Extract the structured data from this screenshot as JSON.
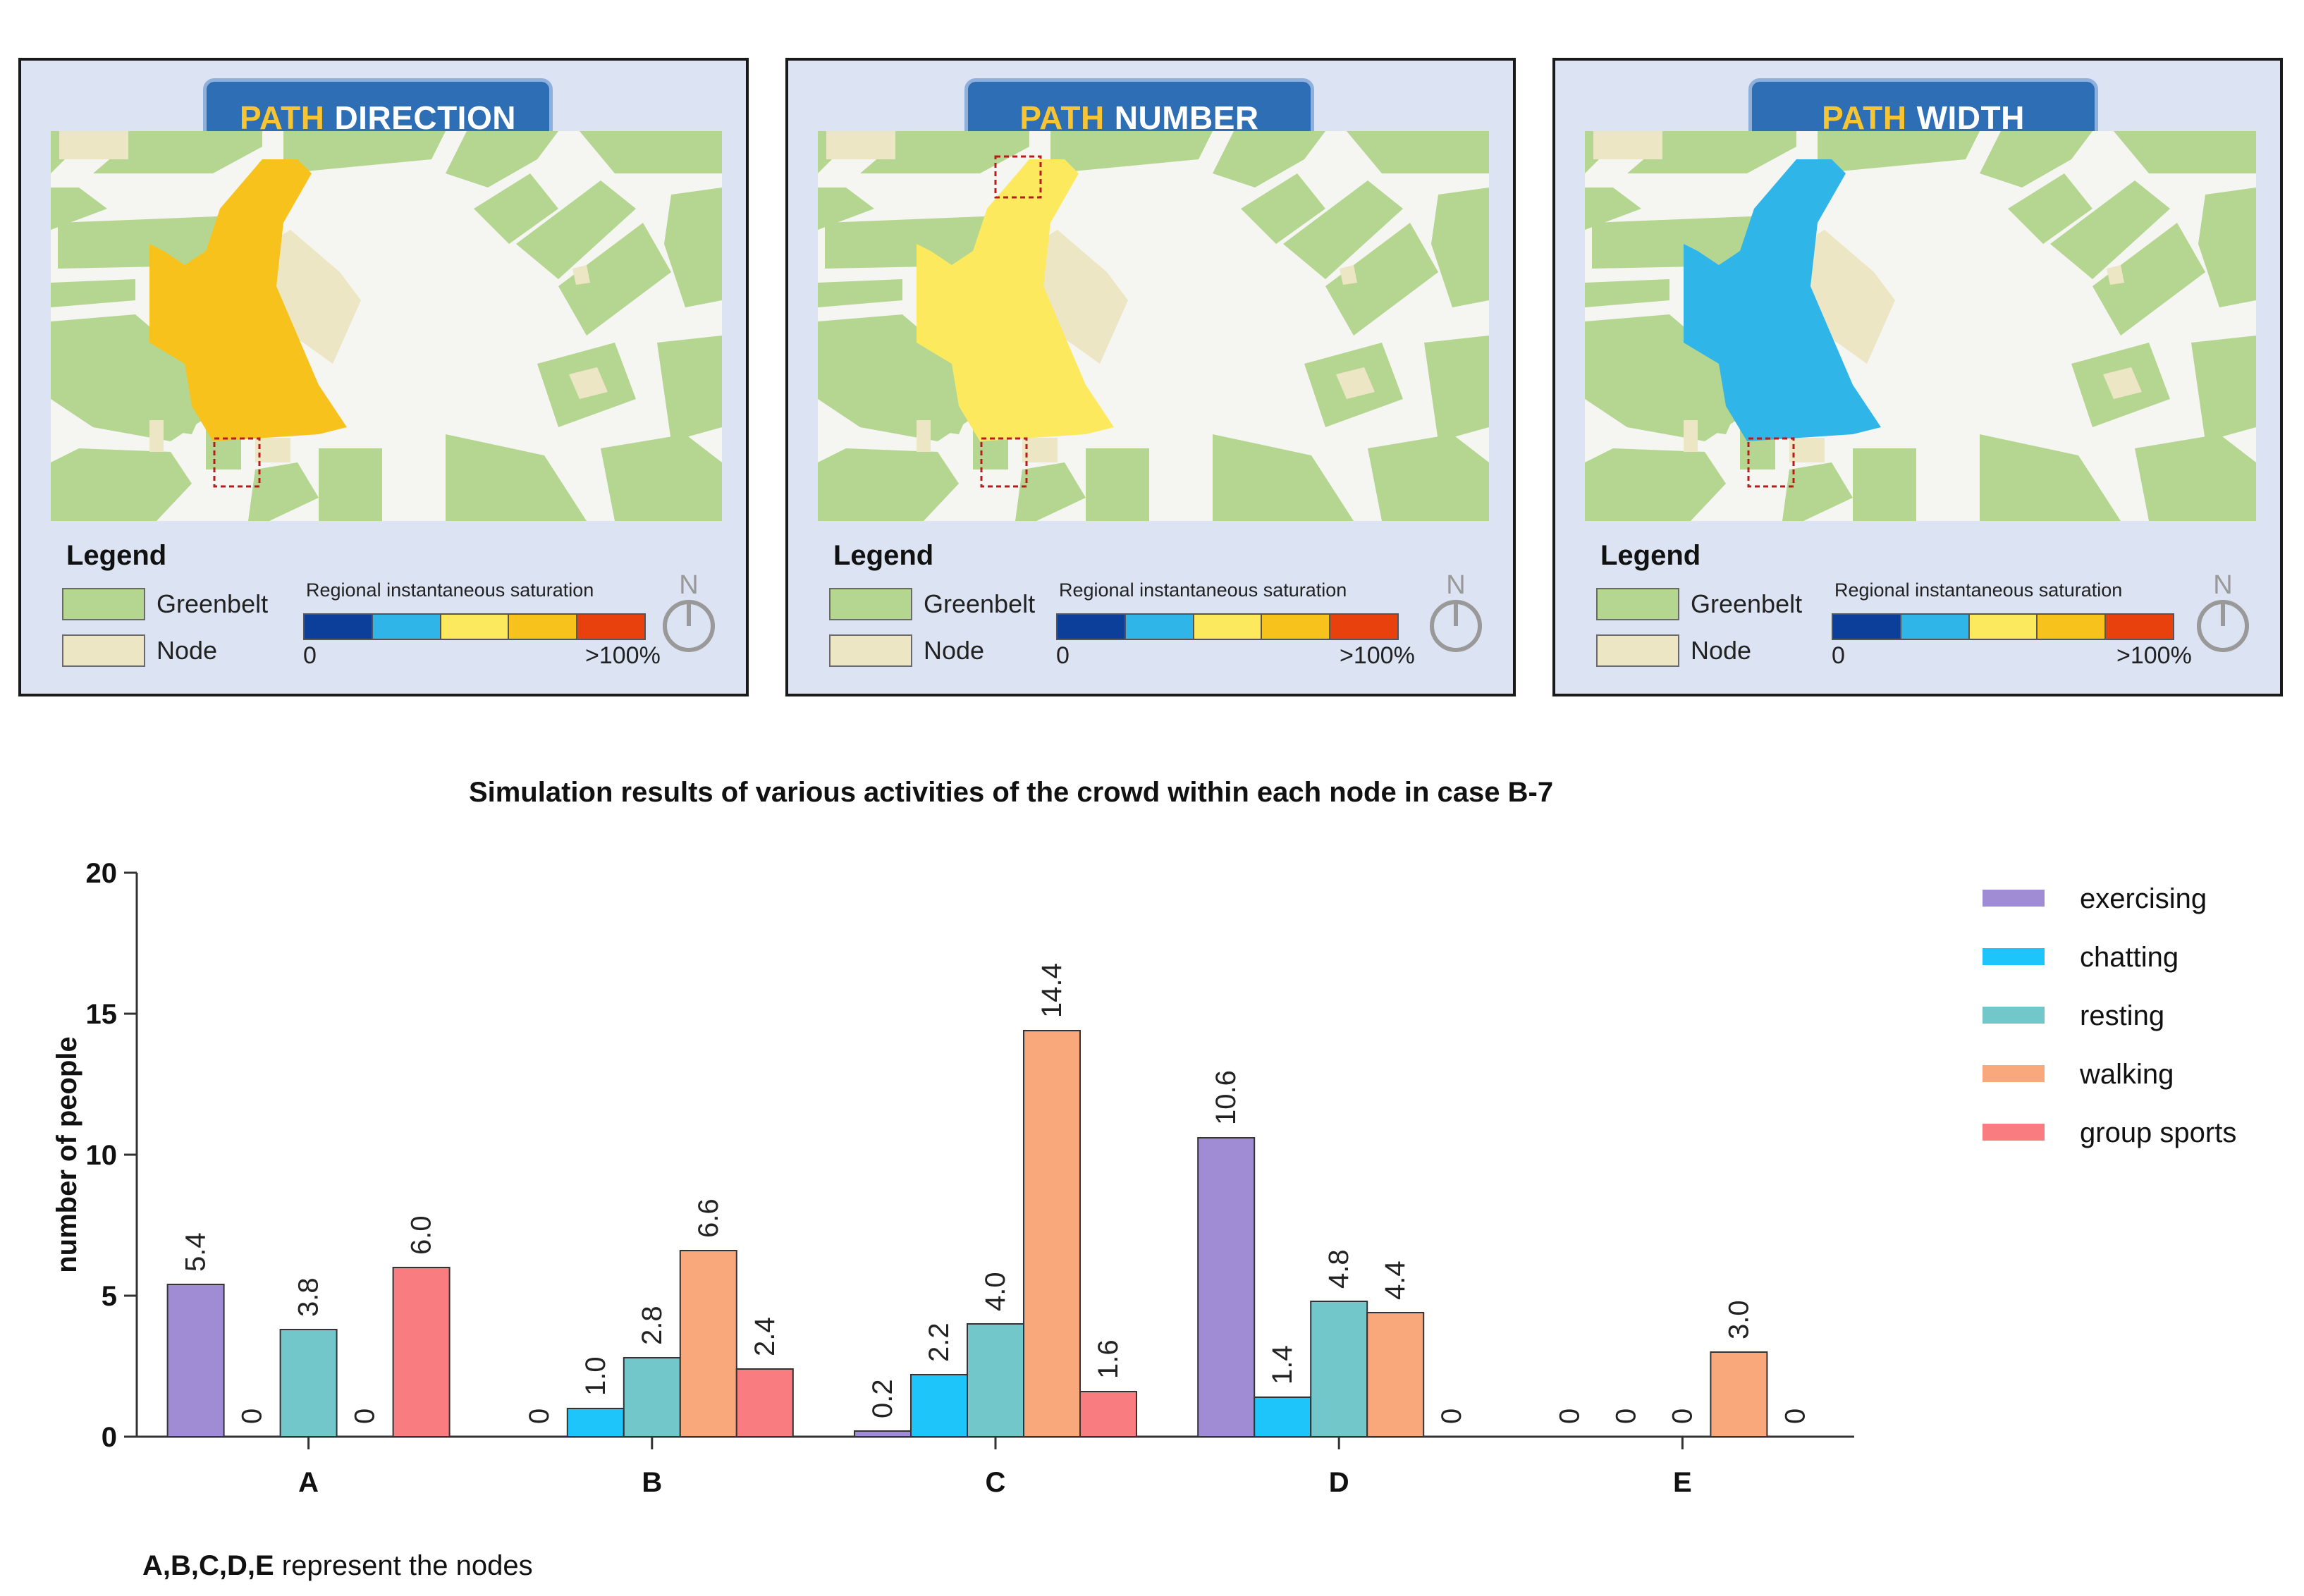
{
  "panels": [
    {
      "title_highlight": "PATH",
      "title_rest": "DIRECTION",
      "region_color": "#f7c21c",
      "box_positions": "south"
    },
    {
      "title_highlight": "PATH",
      "title_rest": "NUMBER",
      "region_color": "#fce95e",
      "box_positions": "north-south"
    },
    {
      "title_highlight": "PATH",
      "title_rest": "WIDTH",
      "region_color": "#2fb5e8",
      "box_positions": "south"
    }
  ],
  "legend": {
    "title": "Legend",
    "greenbelt": "Greenbelt",
    "node": "Node",
    "saturation_label": "Regional instantaneous saturation",
    "min": "0",
    "max": ">100%",
    "north": "N",
    "scale_colors": [
      "#0b3f99",
      "#2fb5e8",
      "#fce95e",
      "#f7c21c",
      "#e8410e"
    ],
    "greenbelt_color": "#b5d690",
    "node_color": "#ece6c4"
  },
  "chart_data": {
    "type": "bar",
    "title": "Simulation results of various activities of the crowd within each node in case B-7",
    "xlabel": "",
    "ylabel": "number of people",
    "ylim": [
      0,
      20
    ],
    "yticks": [
      0,
      5,
      10,
      15,
      20
    ],
    "categories": [
      "A",
      "B",
      "C",
      "D",
      "E"
    ],
    "series": [
      {
        "name": "exercising",
        "color": "#a08cd4",
        "values": [
          5.4,
          0,
          0.2,
          10.6,
          0
        ],
        "labels": [
          "5.4",
          "0",
          "0.2",
          "10.6",
          "0"
        ]
      },
      {
        "name": "chatting",
        "color": "#1ec5fa",
        "values": [
          0,
          1.0,
          2.2,
          1.4,
          0
        ],
        "labels": [
          "0",
          "1.0",
          "2.2",
          "1.4",
          "0"
        ]
      },
      {
        "name": "resting",
        "color": "#72c7cb",
        "values": [
          3.8,
          2.8,
          4.0,
          4.8,
          0
        ],
        "labels": [
          "3.8",
          "2.8",
          "4.0",
          "4.8",
          "0"
        ]
      },
      {
        "name": "walking",
        "color": "#f8a87a",
        "values": [
          0,
          6.6,
          14.4,
          4.4,
          3.0
        ],
        "labels": [
          "0",
          "6.6",
          "14.4",
          "4.4",
          "3.0"
        ]
      },
      {
        "name": "group sports",
        "color": "#f87c80",
        "values": [
          6.0,
          2.4,
          1.6,
          0,
          0
        ],
        "labels": [
          "6.0",
          "2.4",
          "1.6",
          "0",
          "0"
        ]
      }
    ],
    "legend_position": "top-right",
    "note_bold": "A,B,C,D,E",
    "note_rest": " represent the nodes"
  }
}
